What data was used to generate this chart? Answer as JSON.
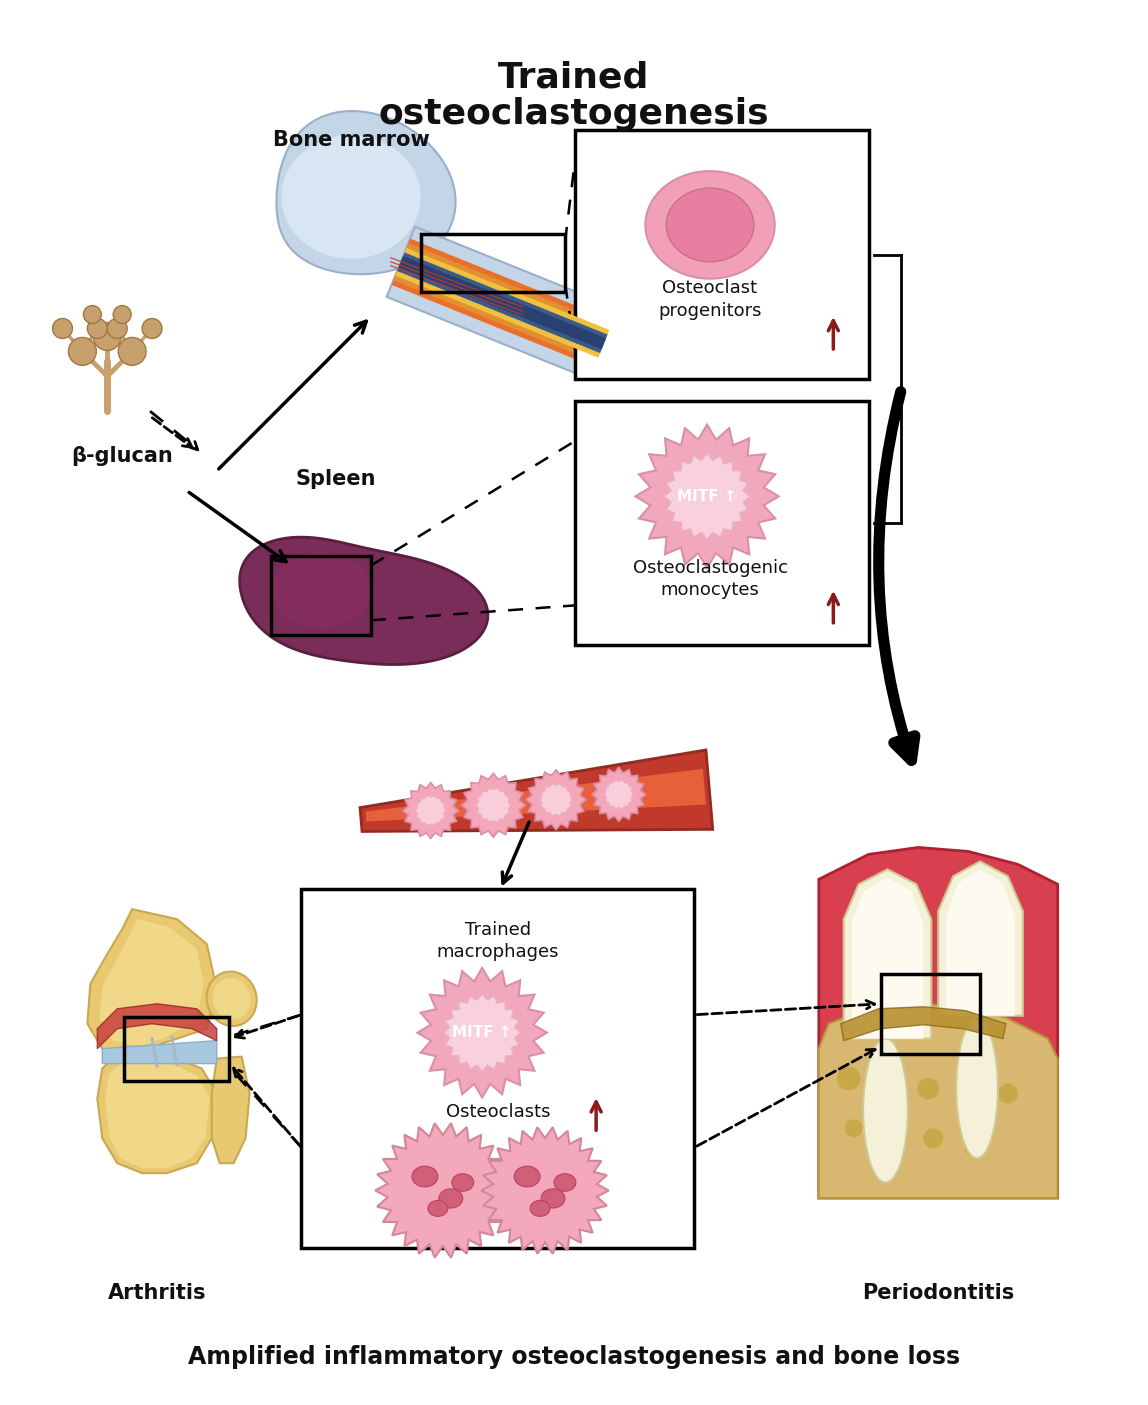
{
  "title_top": "Trained\nosteoclastogenesis",
  "title_bottom": "Amplified inflammatory osteoclastogenesis and bone loss",
  "labels": {
    "bone_marrow": "Bone marrow",
    "spleen": "Spleen",
    "beta_glucan": "β-glucan",
    "osteoclast_progenitors": "Osteoclast\nprogenitors",
    "osteoclastogenic_monocytes": "Osteoclastogenic\nmonocytes",
    "trained_macrophages": "Trained\nmacrophages",
    "osteoclasts": "Osteoclasts",
    "arthritis": "Arthritis",
    "periodontitis": "Periodontitis",
    "MITF_up": "MITF ↑",
    "MITF_up2": "MITF ↑"
  },
  "colors": {
    "background": "#ffffff",
    "cell_pink_outer": "#f2a0b8",
    "cell_pink_inner": "#e87fa0",
    "cell_light_pink": "#f9cdd9",
    "arrow_red": "#8b1a1a",
    "arrow_black": "#111111",
    "box_border": "#111111",
    "dashed_line": "#111111",
    "bone_blue_outer": "#c5d5e8",
    "bone_blue_inner": "#d8e5f2",
    "bone_marrow_orange": "#e8702a",
    "bone_marrow_yellow": "#f0c040",
    "bone_marrow_red": "#c0392b",
    "bone_marrow_blue": "#3a5a8a",
    "spleen_purple": "#7a2d58",
    "spleen_highlight": "#6a2048",
    "blood_vessel_red": "#c0392b",
    "blood_vessel_light": "#e8603a",
    "blood_cell_pink": "#f4a7b9",
    "blood_cell_inner": "#f9cdd9",
    "monocyte_outer": "#f2a8bc",
    "monocyte_inner": "#f8d0de",
    "osteoclast_pink": "#f4a8bc",
    "osteoclast_dark": "#d06078",
    "osteoclast_nucleus": "#c04060",
    "fungus_brown": "#c8a06e",
    "fungus_dark": "#a07840",
    "knee_bone": "#e8c870",
    "knee_cartilage": "#a8c8e0",
    "knee_inflam": "#c85040",
    "tooth_white": "#f5f0d8",
    "tooth_inner": "#fdfaf0",
    "gum_red": "#d84050",
    "gum_dark": "#b03040",
    "gum_bone": "#d8b870",
    "text_black": "#111111",
    "bracket_black": "#111111",
    "thick_arrow": "#111111"
  }
}
